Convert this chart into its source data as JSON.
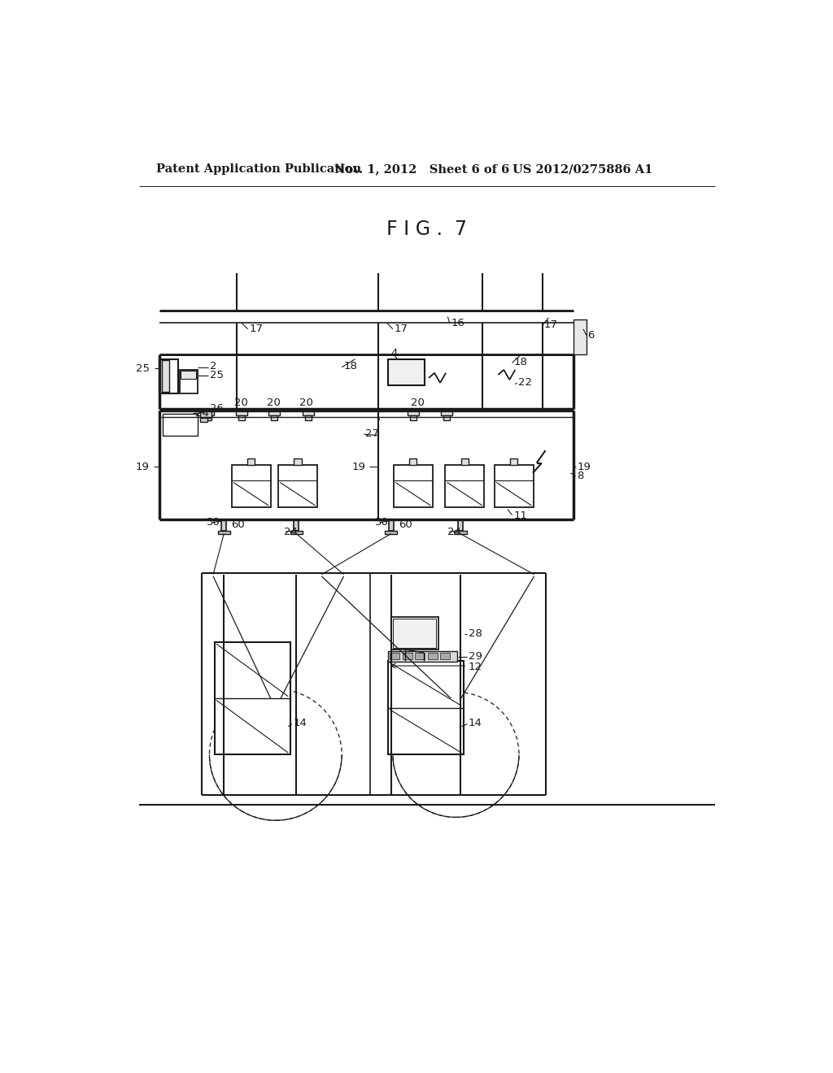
{
  "title": "F I G .  7",
  "header_left": "Patent Application Publication",
  "header_mid": "Nov. 1, 2012   Sheet 6 of 6",
  "header_right": "US 2012/0275886 A1",
  "bg_color": "#ffffff",
  "line_color": "#1a1a1a",
  "label_fontsize": 9.5,
  "title_fontsize": 17,
  "header_fontsize": 10.5
}
